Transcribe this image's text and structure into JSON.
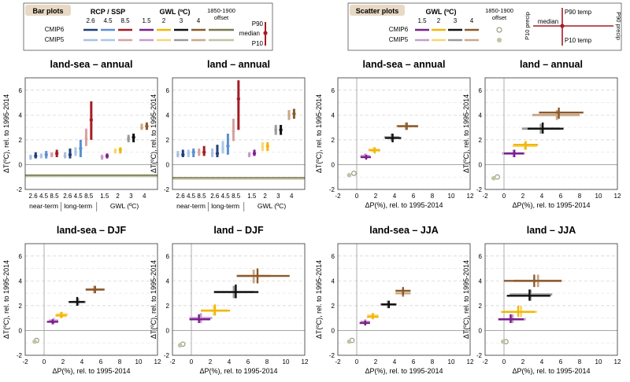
{
  "legend_bar": {
    "tag": "Bar plots",
    "rcp_title": "RCP / SSP",
    "gwl_title": "GWL (ºC)",
    "rcp_labels": [
      "2.6",
      "4.5",
      "8.5"
    ],
    "gwl_labels": [
      "1.5",
      "2",
      "3",
      "4"
    ],
    "offset_label_1": "1850-1900",
    "offset_label_2": "offset",
    "row_labels": [
      "CMIP6",
      "CMIP5"
    ],
    "key_labels": [
      "P90",
      "median",
      "P10"
    ]
  },
  "legend_scatter": {
    "tag": "Scatter plots",
    "gwl_title": "GWL (ºC)",
    "gwl_labels": [
      "1.5",
      "2",
      "3",
      "4"
    ],
    "offset_label_1": "1850-1900",
    "offset_label_2": "offset",
    "row_labels": [
      "CMIP6",
      "CMIP5"
    ],
    "key_labels": [
      "P90 temp",
      "median",
      "P10 temp",
      "P10 precip",
      "P90 precip"
    ]
  },
  "colors": {
    "rcp6": [
      "#1f3f7a",
      "#5b8fd0",
      "#a51c24"
    ],
    "rcp5": [
      "#a9c0e0",
      "#a9c7ea",
      "#d9a0a0"
    ],
    "gwl6": [
      "#7a1f8c",
      "#f2b705",
      "#111111",
      "#8b5a2b"
    ],
    "gwl5": [
      "#c79ad0",
      "#f7d774",
      "#9a9a9a",
      "#c9a889"
    ],
    "offset6": "#7a7a50",
    "offset5": "#c2c2a6"
  },
  "chart_data": [
    {
      "type": "bar",
      "title": "land-sea – annual",
      "ylabel": "ΔT(ºC), rel. to 1995-2014",
      "ylim": [
        -2,
        7
      ],
      "yticks": [
        -2,
        0,
        2,
        4,
        6
      ],
      "categories": [
        "2.6",
        "4.5",
        "8.5",
        "2.6",
        "4.5",
        "8.5",
        "1.5",
        "2",
        "3",
        "4"
      ],
      "group_labels": [
        "near-term",
        "long-term",
        "GWL (ºC)"
      ],
      "offset": [
        -0.85,
        -0.95
      ],
      "series": [
        {
          "name": "CMIP6",
          "median": [
            0.7,
            0.8,
            0.9,
            0.8,
            1.3,
            3.6,
            0.7,
            1.2,
            2.2,
            3.1
          ],
          "p10": [
            0.5,
            0.5,
            0.6,
            0.5,
            0.6,
            2.0,
            0.5,
            0.9,
            1.8,
            2.8
          ],
          "p90": [
            1.0,
            1.1,
            1.2,
            1.3,
            2.0,
            5.1,
            0.9,
            1.4,
            2.5,
            3.4
          ]
        },
        {
          "name": "CMIP5",
          "median": [
            0.6,
            0.7,
            0.8,
            0.7,
            1.0,
            2.1,
            0.6,
            1.1,
            2.1,
            3.0
          ],
          "p10": [
            0.4,
            0.5,
            0.6,
            0.5,
            0.7,
            1.5,
            0.4,
            0.9,
            1.8,
            2.8
          ],
          "p90": [
            0.8,
            0.9,
            1.0,
            1.0,
            1.4,
            2.9,
            0.8,
            1.3,
            2.4,
            3.3
          ]
        }
      ]
    },
    {
      "type": "bar",
      "title": "land – annual",
      "ylabel": "ΔT(ºC), rel. to 1995-2014",
      "ylim": [
        -2,
        7
      ],
      "yticks": [
        -2,
        0,
        2,
        4,
        6
      ],
      "categories": [
        "2.6",
        "4.5",
        "8.5",
        "2.6",
        "4.5",
        "8.5",
        "1.5",
        "2",
        "3",
        "4"
      ],
      "group_labels": [
        "near-term",
        "long-term",
        "GWL (ºC)"
      ],
      "offset": [
        -1.05,
        -1.15
      ],
      "series": [
        {
          "name": "CMIP6",
          "median": [
            0.8,
            1.0,
            1.0,
            0.9,
            1.5,
            5.3,
            0.9,
            1.5,
            2.8,
            4.1
          ],
          "p10": [
            0.6,
            0.6,
            0.7,
            0.6,
            0.8,
            2.8,
            0.7,
            1.1,
            2.4,
            3.7
          ],
          "p90": [
            1.2,
            1.3,
            1.5,
            1.6,
            2.5,
            6.8,
            1.2,
            1.8,
            3.2,
            4.5
          ]
        },
        {
          "name": "CMIP5",
          "median": [
            0.8,
            0.9,
            1.0,
            0.9,
            1.3,
            2.7,
            0.8,
            1.4,
            2.8,
            4.0
          ],
          "p10": [
            0.6,
            0.6,
            0.7,
            0.6,
            0.9,
            1.9,
            0.6,
            1.1,
            2.4,
            3.6
          ],
          "p90": [
            1.1,
            1.2,
            1.3,
            1.3,
            1.9,
            3.7,
            1.0,
            1.8,
            3.2,
            4.4
          ]
        }
      ]
    },
    {
      "type": "scatter",
      "title": "land-sea – annual",
      "xlabel": "ΔP(%), rel. to 1995-2014",
      "ylabel": "ΔT(ºC), rel. to 1995-2014",
      "xlim": [
        -2,
        12
      ],
      "ylim": [
        -2,
        7
      ],
      "xticks": [
        -2,
        0,
        2,
        4,
        6,
        8,
        10,
        12
      ],
      "yticks": [
        -2,
        0,
        2,
        4,
        6
      ],
      "offset": [
        {
          "x": -0.8,
          "y": -0.85
        },
        {
          "x": -0.3,
          "y": -0.7
        }
      ],
      "points": [
        {
          "g": 0,
          "set": "CMIP5",
          "x": 0.9,
          "y": 0.7,
          "xlo": 0.4,
          "xhi": 1.4,
          "ylo": 0.5,
          "yhi": 0.9
        },
        {
          "g": 0,
          "set": "CMIP6",
          "x": 1.0,
          "y": 0.6,
          "xlo": 0.4,
          "xhi": 1.5,
          "ylo": 0.4,
          "yhi": 0.8
        },
        {
          "g": 1,
          "set": "CMIP5",
          "x": 1.8,
          "y": 1.2,
          "xlo": 1.2,
          "xhi": 2.4,
          "ylo": 1.0,
          "yhi": 1.4
        },
        {
          "g": 1,
          "set": "CMIP6",
          "x": 1.9,
          "y": 1.15,
          "xlo": 1.3,
          "xhi": 2.5,
          "ylo": 0.9,
          "yhi": 1.4
        },
        {
          "g": 2,
          "set": "CMIP5",
          "x": 3.7,
          "y": 2.2,
          "xlo": 2.9,
          "xhi": 4.5,
          "ylo": 1.9,
          "yhi": 2.5
        },
        {
          "g": 2,
          "set": "CMIP6",
          "x": 3.8,
          "y": 2.15,
          "xlo": 3.0,
          "xhi": 4.7,
          "ylo": 1.8,
          "yhi": 2.5
        },
        {
          "g": 3,
          "set": "CMIP5",
          "x": 5.2,
          "y": 3.1,
          "xlo": 4.2,
          "xhi": 6.4,
          "ylo": 2.8,
          "yhi": 3.4
        },
        {
          "g": 3,
          "set": "CMIP6",
          "x": 5.3,
          "y": 3.1,
          "xlo": 4.3,
          "xhi": 6.5,
          "ylo": 2.8,
          "yhi": 3.4
        }
      ]
    },
    {
      "type": "scatter",
      "title": "land – annual",
      "xlabel": "ΔP(%), rel. to 1995-2014",
      "ylabel": "ΔT(ºC), rel. to 1995-2014",
      "xlim": [
        -2,
        12
      ],
      "ylim": [
        -2,
        7
      ],
      "xticks": [
        -2,
        0,
        2,
        4,
        6,
        8,
        10,
        12
      ],
      "yticks": [
        -2,
        0,
        2,
        4,
        6
      ],
      "offset": [
        {
          "x": -1.1,
          "y": -1.1
        },
        {
          "x": -0.7,
          "y": -1.0
        }
      ],
      "points": [
        {
          "g": 0,
          "set": "CMIP5",
          "x": 1.0,
          "y": 0.9,
          "xlo": -0.2,
          "xhi": 2.2,
          "ylo": 0.6,
          "yhi": 1.2
        },
        {
          "g": 0,
          "set": "CMIP6",
          "x": 1.1,
          "y": 0.9,
          "xlo": 0.0,
          "xhi": 2.1,
          "ylo": 0.6,
          "yhi": 1.2
        },
        {
          "g": 1,
          "set": "CMIP5",
          "x": 2.2,
          "y": 1.5,
          "xlo": 0.9,
          "xhi": 3.5,
          "ylo": 1.2,
          "yhi": 1.8
        },
        {
          "g": 1,
          "set": "CMIP6",
          "x": 2.3,
          "y": 1.6,
          "xlo": 1.0,
          "xhi": 3.6,
          "ylo": 1.2,
          "yhi": 1.9
        },
        {
          "g": 2,
          "set": "CMIP5",
          "x": 3.9,
          "y": 2.9,
          "xlo": 1.9,
          "xhi": 5.9,
          "ylo": 2.5,
          "yhi": 3.3
        },
        {
          "g": 2,
          "set": "CMIP6",
          "x": 4.1,
          "y": 2.9,
          "xlo": 2.5,
          "xhi": 6.3,
          "ylo": 2.5,
          "yhi": 3.4
        },
        {
          "g": 3,
          "set": "CMIP5",
          "x": 5.6,
          "y": 4.0,
          "xlo": 3.0,
          "xhi": 8.0,
          "ylo": 3.6,
          "yhi": 4.4
        },
        {
          "g": 3,
          "set": "CMIP6",
          "x": 5.8,
          "y": 4.2,
          "xlo": 3.7,
          "xhi": 8.4,
          "ylo": 3.7,
          "yhi": 4.6
        }
      ]
    },
    {
      "type": "scatter",
      "title": "land-sea – DJF",
      "xlabel": "ΔP(%), rel. to 1995-2014",
      "ylabel": "ΔT(ºC), rel. to 1995-2014",
      "xlim": [
        -2,
        12
      ],
      "ylim": [
        -2,
        7
      ],
      "xticks": [
        -2,
        0,
        2,
        4,
        6,
        8,
        10,
        12
      ],
      "yticks": [
        -2,
        0,
        2,
        4,
        6
      ],
      "offset": [
        {
          "x": -1.0,
          "y": -0.9
        },
        {
          "x": -0.8,
          "y": -0.8
        }
      ],
      "points": [
        {
          "g": 0,
          "set": "CMIP5",
          "x": 1.0,
          "y": 0.8,
          "xlo": 0.5,
          "xhi": 1.5,
          "ylo": 0.5,
          "yhi": 1.0
        },
        {
          "g": 0,
          "set": "CMIP6",
          "x": 0.9,
          "y": 0.7,
          "xlo": 0.3,
          "xhi": 1.5,
          "ylo": 0.5,
          "yhi": 0.9
        },
        {
          "g": 1,
          "set": "CMIP5",
          "x": 1.9,
          "y": 1.3,
          "xlo": 1.3,
          "xhi": 2.5,
          "ylo": 1.0,
          "yhi": 1.5
        },
        {
          "g": 1,
          "set": "CMIP6",
          "x": 1.8,
          "y": 1.2,
          "xlo": 1.2,
          "xhi": 2.4,
          "ylo": 1.0,
          "yhi": 1.5
        },
        {
          "g": 2,
          "set": "CMIP5",
          "x": 3.6,
          "y": 2.3,
          "xlo": 2.8,
          "xhi": 4.4,
          "ylo": 2.0,
          "yhi": 2.6
        },
        {
          "g": 2,
          "set": "CMIP6",
          "x": 3.5,
          "y": 2.3,
          "xlo": 2.6,
          "xhi": 4.3,
          "ylo": 2.0,
          "yhi": 2.7
        },
        {
          "g": 3,
          "set": "CMIP5",
          "x": 5.3,
          "y": 3.3,
          "xlo": 4.4,
          "xhi": 6.3,
          "ylo": 3.0,
          "yhi": 3.6
        },
        {
          "g": 3,
          "set": "CMIP6",
          "x": 5.4,
          "y": 3.3,
          "xlo": 4.4,
          "xhi": 6.4,
          "ylo": 3.0,
          "yhi": 3.6
        }
      ]
    },
    {
      "type": "scatter",
      "title": "land – DJF",
      "xlabel": "ΔP(%), rel. to 1995-2014",
      "ylabel": "ΔT(ºC), rel. to 1995-2014",
      "xlim": [
        -2,
        12
      ],
      "ylim": [
        -2,
        7
      ],
      "xticks": [
        -2,
        0,
        2,
        4,
        6,
        8,
        10,
        12
      ],
      "yticks": [
        -2,
        0,
        2,
        4,
        6
      ],
      "offset": [
        {
          "x": -1.2,
          "y": -1.2
        },
        {
          "x": -0.9,
          "y": -1.1
        }
      ],
      "points": [
        {
          "g": 0,
          "set": "CMIP5",
          "x": 1.0,
          "y": 1.0,
          "xlo": -0.2,
          "xhi": 2.2,
          "ylo": 0.6,
          "yhi": 1.4
        },
        {
          "g": 0,
          "set": "CMIP6",
          "x": 0.8,
          "y": 0.9,
          "xlo": -0.2,
          "xhi": 2.0,
          "ylo": 0.6,
          "yhi": 1.3
        },
        {
          "g": 1,
          "set": "CMIP5",
          "x": 2.4,
          "y": 1.6,
          "xlo": 1.0,
          "xhi": 3.8,
          "ylo": 1.2,
          "yhi": 2.0
        },
        {
          "g": 1,
          "set": "CMIP6",
          "x": 2.5,
          "y": 1.6,
          "xlo": 1.0,
          "xhi": 4.1,
          "ylo": 1.2,
          "yhi": 2.1
        },
        {
          "g": 2,
          "set": "CMIP5",
          "x": 4.5,
          "y": 3.1,
          "xlo": 2.4,
          "xhi": 6.6,
          "ylo": 2.6,
          "yhi": 3.6
        },
        {
          "g": 2,
          "set": "CMIP6",
          "x": 4.7,
          "y": 3.1,
          "xlo": 2.4,
          "xhi": 7.1,
          "ylo": 2.6,
          "yhi": 3.7
        },
        {
          "g": 3,
          "set": "CMIP5",
          "x": 6.6,
          "y": 4.4,
          "xlo": 4.8,
          "xhi": 8.4,
          "ylo": 3.8,
          "yhi": 4.9
        },
        {
          "g": 3,
          "set": "CMIP6",
          "x": 7.0,
          "y": 4.4,
          "xlo": 4.8,
          "xhi": 10.4,
          "ylo": 3.8,
          "yhi": 5.0
        }
      ]
    },
    {
      "type": "scatter",
      "title": "land-sea – JJA",
      "xlabel": "ΔP(%), rel. to 1995-2014",
      "ylabel": "ΔT(ºC), rel. to 1995-2014",
      "xlim": [
        -2,
        12
      ],
      "ylim": [
        -2,
        7
      ],
      "xticks": [
        -2,
        0,
        2,
        4,
        6,
        8,
        10,
        12
      ],
      "yticks": [
        -2,
        0,
        2,
        4,
        6
      ],
      "offset": [
        {
          "x": -0.8,
          "y": -0.9
        },
        {
          "x": -0.5,
          "y": -0.8
        }
      ],
      "points": [
        {
          "g": 0,
          "set": "CMIP5",
          "x": 0.9,
          "y": 0.7,
          "xlo": 0.4,
          "xhi": 1.4,
          "ylo": 0.5,
          "yhi": 0.9
        },
        {
          "g": 0,
          "set": "CMIP6",
          "x": 0.9,
          "y": 0.6,
          "xlo": 0.3,
          "xhi": 1.4,
          "ylo": 0.4,
          "yhi": 0.8
        },
        {
          "g": 1,
          "set": "CMIP5",
          "x": 1.7,
          "y": 1.2,
          "xlo": 1.1,
          "xhi": 2.3,
          "ylo": 1.0,
          "yhi": 1.4
        },
        {
          "g": 1,
          "set": "CMIP6",
          "x": 1.7,
          "y": 1.1,
          "xlo": 1.1,
          "xhi": 2.3,
          "ylo": 0.9,
          "yhi": 1.4
        },
        {
          "g": 2,
          "set": "CMIP5",
          "x": 3.3,
          "y": 2.1,
          "xlo": 2.5,
          "xhi": 4.1,
          "ylo": 1.8,
          "yhi": 2.4
        },
        {
          "g": 2,
          "set": "CMIP6",
          "x": 3.4,
          "y": 2.1,
          "xlo": 2.6,
          "xhi": 4.2,
          "ylo": 1.8,
          "yhi": 2.4
        },
        {
          "g": 3,
          "set": "CMIP5",
          "x": 4.9,
          "y": 3.0,
          "xlo": 4.1,
          "xhi": 5.7,
          "ylo": 2.7,
          "yhi": 3.3
        },
        {
          "g": 3,
          "set": "CMIP6",
          "x": 4.9,
          "y": 3.2,
          "xlo": 4.1,
          "xhi": 5.7,
          "ylo": 2.8,
          "yhi": 3.5
        }
      ]
    },
    {
      "type": "scatter",
      "title": "land – JJA",
      "xlabel": "ΔP(%), rel. to 1995-2014",
      "ylabel": "ΔT(ºC), rel. to 1995-2014",
      "xlim": [
        -2,
        12
      ],
      "ylim": [
        -2,
        7
      ],
      "xticks": [
        -2,
        0,
        2,
        4,
        6,
        8,
        10,
        12
      ],
      "yticks": [
        -2,
        0,
        2,
        4,
        6
      ],
      "offset": [
        {
          "x": -0.1,
          "y": -0.9
        },
        {
          "x": 0.2,
          "y": -0.9
        }
      ],
      "points": [
        {
          "g": 0,
          "set": "CMIP5",
          "x": 0.9,
          "y": 0.9,
          "xlo": -0.6,
          "xhi": 2.3,
          "ylo": 0.6,
          "yhi": 1.3
        },
        {
          "g": 0,
          "set": "CMIP6",
          "x": 0.7,
          "y": 0.9,
          "xlo": -0.6,
          "xhi": 2.1,
          "ylo": 0.6,
          "yhi": 1.3
        },
        {
          "g": 1,
          "set": "CMIP5",
          "x": 1.8,
          "y": 1.5,
          "xlo": 0.0,
          "xhi": 3.5,
          "ylo": 1.1,
          "yhi": 2.0
        },
        {
          "g": 1,
          "set": "CMIP6",
          "x": 1.5,
          "y": 1.5,
          "xlo": -0.3,
          "xhi": 3.3,
          "ylo": 1.1,
          "yhi": 2.0
        },
        {
          "g": 2,
          "set": "CMIP5",
          "x": 2.8,
          "y": 2.9,
          "xlo": 0.6,
          "xhi": 5.1,
          "ylo": 2.4,
          "yhi": 3.3
        },
        {
          "g": 2,
          "set": "CMIP6",
          "x": 2.7,
          "y": 2.8,
          "xlo": 0.3,
          "xhi": 4.9,
          "ylo": 2.4,
          "yhi": 3.3
        },
        {
          "g": 3,
          "set": "CMIP5",
          "x": 3.6,
          "y": 4.0,
          "xlo": 1.0,
          "xhi": 6.1,
          "ylo": 3.5,
          "yhi": 4.5
        },
        {
          "g": 3,
          "set": "CMIP6",
          "x": 3.2,
          "y": 4.0,
          "xlo": 0.0,
          "xhi": 6.1,
          "ylo": 3.5,
          "yhi": 4.5
        }
      ]
    }
  ]
}
